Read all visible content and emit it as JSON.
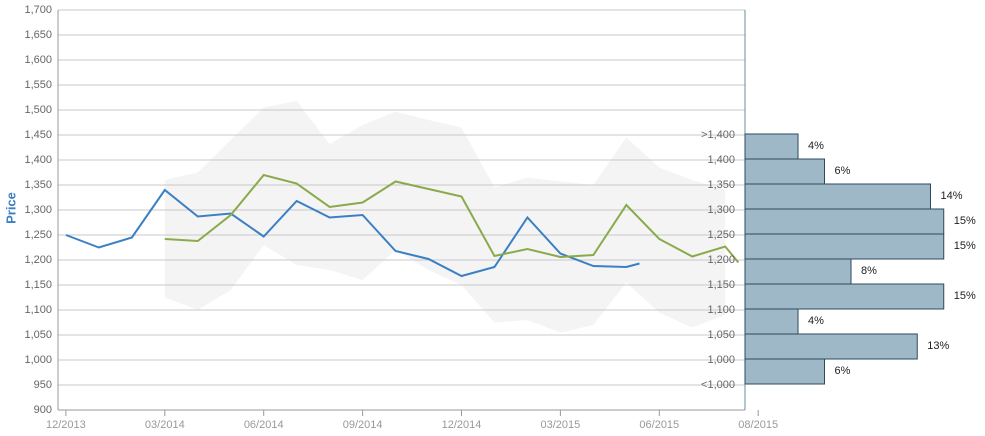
{
  "chart_data": {
    "type": "line",
    "y_label": "Price",
    "ylim": [
      900,
      1700
    ],
    "yticks": [
      {
        "value": 900,
        "label": "900"
      },
      {
        "value": 950,
        "label": "950"
      },
      {
        "value": 1000,
        "label": "1,000"
      },
      {
        "value": 1050,
        "label": "1,050"
      },
      {
        "value": 1100,
        "label": "1,100"
      },
      {
        "value": 1150,
        "label": "1,150"
      },
      {
        "value": 1200,
        "label": "1,200"
      },
      {
        "value": 1250,
        "label": "1,250"
      },
      {
        "value": 1300,
        "label": "1,300"
      },
      {
        "value": 1350,
        "label": "1,350"
      },
      {
        "value": 1400,
        "label": "1,400"
      },
      {
        "value": 1450,
        "label": "1,450"
      },
      {
        "value": 1500,
        "label": "1,500"
      },
      {
        "value": 1550,
        "label": "1,550"
      },
      {
        "value": 1600,
        "label": "1,600"
      },
      {
        "value": 1650,
        "label": "1,650"
      },
      {
        "value": 1700,
        "label": "1,700"
      }
    ],
    "xlim": [
      -0.24,
      20.6
    ],
    "xticks": [
      {
        "value": 0,
        "label": "12/2013"
      },
      {
        "value": 3,
        "label": "03/2014"
      },
      {
        "value": 6,
        "label": "06/2014"
      },
      {
        "value": 9,
        "label": "09/2014"
      },
      {
        "value": 12,
        "label": "12/2014"
      },
      {
        "value": 15,
        "label": "03/2015"
      },
      {
        "value": 18,
        "label": "06/2015"
      },
      {
        "value": 21,
        "label": "08/2015"
      }
    ],
    "grid": true,
    "band": {
      "color": "#f4f4f4",
      "x": [
        3,
        4,
        5,
        6,
        7,
        8,
        9,
        10,
        11,
        12,
        13,
        14,
        15,
        16,
        17,
        18,
        19,
        20
      ],
      "upper": [
        1360,
        1375,
        1440,
        1505,
        1518,
        1432,
        1470,
        1497,
        1480,
        1465,
        1345,
        1365,
        1357,
        1350,
        1445,
        1385,
        1360,
        1340
      ],
      "lower": [
        1125,
        1100,
        1140,
        1230,
        1190,
        1180,
        1160,
        1220,
        1180,
        1150,
        1075,
        1080,
        1055,
        1070,
        1155,
        1095,
        1065,
        1090
      ]
    },
    "series": [
      {
        "color": "#3b7fc4",
        "x": [
          0,
          1,
          2,
          3,
          4,
          5,
          6,
          7,
          8,
          9,
          10,
          11,
          12,
          13,
          14,
          15,
          16,
          17,
          17.4
        ],
        "values": [
          1250,
          1225,
          1245,
          1340,
          1287,
          1293,
          1247,
          1318,
          1285,
          1290,
          1218,
          1202,
          1168,
          1186,
          1285,
          1213,
          1188,
          1186,
          1193
        ]
      },
      {
        "color": "#8aaa4a",
        "x": [
          3,
          4,
          5,
          6,
          7,
          8,
          9,
          10,
          11,
          12,
          13,
          14,
          15,
          16,
          17,
          18,
          19,
          20,
          20.4
        ],
        "values": [
          1242,
          1238,
          1290,
          1370,
          1353,
          1306,
          1315,
          1357,
          1342,
          1327,
          1208,
          1222,
          1206,
          1210,
          1310,
          1242,
          1207,
          1227,
          1195
        ]
      }
    ],
    "histogram": {
      "color": "#9fb8c8",
      "categories": [
        ">1,400",
        "1,400",
        "1,350",
        "1,300",
        "1,250",
        "1,200",
        "1,150",
        "1,100",
        "1,050",
        "1,000",
        "<1,000"
      ],
      "values": [
        4,
        6,
        14,
        15,
        15,
        8,
        15,
        4,
        13,
        6,
        null
      ],
      "value_labels": [
        "4%",
        "6%",
        "14%",
        "15%",
        "15%",
        "8%",
        "15%",
        "4%",
        "13%",
        "6%",
        null
      ]
    }
  }
}
